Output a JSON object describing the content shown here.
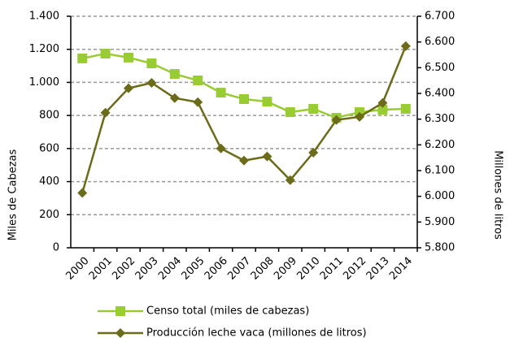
{
  "chart_data": {
    "type": "line",
    "categories": [
      "2000",
      "2001",
      "2002",
      "2003",
      "2004",
      "2005",
      "2006",
      "2007",
      "2008",
      "2009",
      "2010",
      "2011",
      "2012",
      "2013",
      "2014"
    ],
    "series": [
      {
        "name": "Censo total (miles de cabezas)",
        "color": "#99cc33",
        "marker": "square",
        "values": [
          1145,
          1174,
          1150,
          1115,
          1051,
          1012,
          938,
          899,
          884,
          820,
          840,
          786,
          820,
          835,
          840
        ]
      },
      {
        "name": "Producción leche vaca (millones de litros)",
        "color": "#6b6b1a",
        "marker": "diamond",
        "axis": "y2",
        "values": [
          6013,
          6325,
          6420,
          6441,
          6382,
          6366,
          6186,
          6139,
          6155,
          6063,
          6170,
          6297,
          6309,
          6363,
          6584
        ]
      }
    ],
    "ylabel": "Miles de Cabezas",
    "y2label": "Millones de litros",
    "ylim": [
      0,
      1400
    ],
    "yticks": [
      0,
      200,
      400,
      600,
      800,
      {
        "value": 1000,
        "label": "1.000"
      },
      {
        "value": 1200,
        "label": "1.200"
      },
      {
        "value": 1400,
        "label": "1.400"
      }
    ],
    "y2lim": [
      5800,
      6700
    ],
    "y2ticks": [
      {
        "value": 5800,
        "label": "5.800"
      },
      {
        "value": 5900,
        "label": "5.900"
      },
      {
        "value": 6000,
        "label": "6.000"
      },
      {
        "value": 6100,
        "label": "6.100"
      },
      {
        "value": 6200,
        "label": "6.200"
      },
      {
        "value": 6300,
        "label": "6.300"
      },
      {
        "value": 6400,
        "label": "6.400"
      },
      {
        "value": 6500,
        "label": "6.500"
      },
      {
        "value": 6600,
        "label": "6.600"
      },
      {
        "value": 6700,
        "label": "6.700"
      }
    ],
    "grid": true,
    "legend": "bottom"
  }
}
